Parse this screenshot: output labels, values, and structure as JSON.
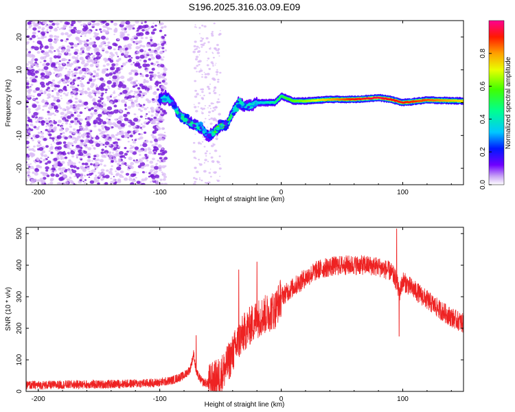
{
  "title": "S196.2025.316.03.09.E09",
  "colors": {
    "snr_line": "#ee2222",
    "spectrum_scatter": "#7a1fd8",
    "spectrum_light": "#d9b9f5"
  },
  "chart_data": [
    {
      "type": "heatmap",
      "name": "spectrogram",
      "xlabel": "Height of straight line (km)",
      "ylabel": "Frequency (Hz)",
      "xlim": [
        -210,
        150
      ],
      "ylim": [
        -25,
        25
      ],
      "xticks": [
        -200,
        -100,
        0,
        100
      ],
      "xtick_labels": [
        "-200",
        "-100",
        "0",
        "100"
      ],
      "yticks": [
        -20,
        -10,
        0,
        10,
        20
      ],
      "ytick_labels": [
        "-20",
        "-10",
        "0",
        "10",
        "20"
      ],
      "colorbar": {
        "label": "Normalized spectral amplitude",
        "range": [
          0.0,
          1.0
        ],
        "ticks": [
          0.0,
          0.2,
          0.4,
          0.6,
          0.8
        ],
        "tick_labels": [
          "0.0",
          "0.2",
          "0.4",
          "0.6",
          "0.8"
        ],
        "colormap": "rainbow"
      },
      "ridge": {
        "description_points_x": [
          -100,
          -95,
          -90,
          -85,
          -80,
          -75,
          -70,
          -65,
          -60,
          -55,
          -50,
          -45,
          -40,
          -35,
          -30,
          -25,
          -20,
          -15,
          -10,
          -5,
          0,
          10,
          20,
          40,
          60,
          80,
          90,
          100,
          120,
          150
        ],
        "description_points_y": [
          1,
          2,
          0,
          -3,
          -5,
          -6,
          -7,
          -8,
          -10,
          -9,
          -7,
          -7,
          -3,
          0,
          -1,
          -1,
          0,
          0,
          0,
          0,
          2,
          0.5,
          0.5,
          1,
          1,
          1.5,
          1,
          0,
          0.8,
          0.5
        ],
        "amplitude": [
          0.25,
          0.3,
          0.3,
          0.4,
          0.45,
          0.45,
          0.4,
          0.35,
          0.25,
          0.5,
          0.55,
          0.55,
          0.4,
          0.3,
          0.3,
          0.3,
          0.3,
          0.3,
          0.35,
          0.4,
          0.45,
          0.55,
          0.6,
          0.75,
          0.9,
          0.95,
          0.9,
          0.9,
          0.85,
          0.7
        ]
      }
    },
    {
      "type": "line",
      "name": "snr",
      "xlabel": "Height of straight line (km)",
      "ylabel": "SNR (10 * v/v)",
      "xlim": [
        -210,
        150
      ],
      "ylim": [
        0,
        520
      ],
      "xticks": [
        -200,
        -100,
        0,
        100
      ],
      "xtick_labels": [
        "-200",
        "-100",
        "0",
        "100"
      ],
      "yticks": [
        0,
        100,
        200,
        300,
        400,
        500
      ],
      "ytick_labels": [
        "0",
        "100",
        "200",
        "300",
        "400",
        "500"
      ],
      "envelope_x": [
        -210,
        -190,
        -170,
        -150,
        -130,
        -110,
        -100,
        -90,
        -80,
        -75,
        -72,
        -70,
        -65,
        -60,
        -55,
        -50,
        -45,
        -40,
        -35,
        -30,
        -25,
        -20,
        -15,
        -10,
        -5,
        0,
        10,
        20,
        30,
        40,
        50,
        60,
        70,
        80,
        90,
        95,
        97,
        100,
        110,
        120,
        130,
        140,
        150
      ],
      "envelope_y": [
        20,
        20,
        22,
        22,
        24,
        26,
        28,
        35,
        50,
        70,
        120,
        60,
        30,
        25,
        35,
        50,
        80,
        120,
        160,
        190,
        210,
        230,
        240,
        250,
        260,
        300,
        330,
        360,
        385,
        395,
        400,
        400,
        400,
        395,
        380,
        350,
        310,
        350,
        320,
        290,
        260,
        235,
        215
      ],
      "noise_amplitude": 35,
      "spikes": [
        {
          "x": -70,
          "y": 177
        },
        {
          "x": -35,
          "y": 385
        },
        {
          "x": -20,
          "y": 410
        },
        {
          "x": 95,
          "y": 515
        },
        {
          "x": 97,
          "y": 175
        }
      ]
    }
  ]
}
